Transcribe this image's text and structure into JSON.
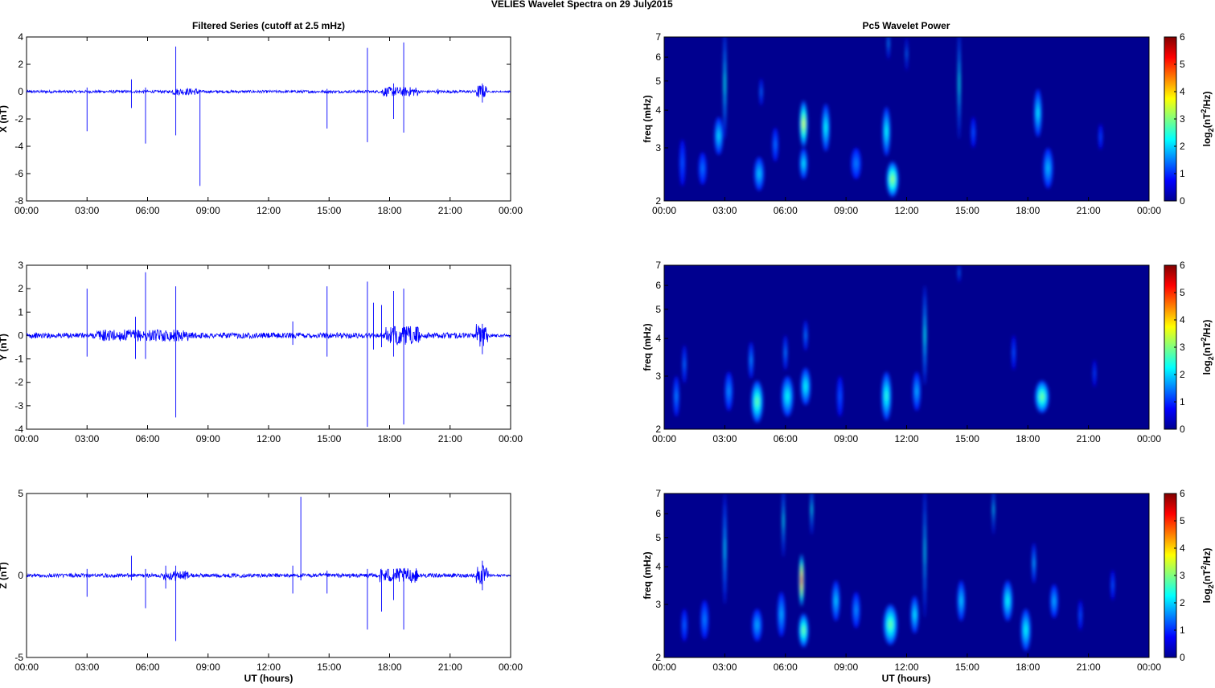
{
  "figure": {
    "title": "VELIES Wavelet Spectra on 29 July",
    "year": "2015",
    "left_title": "Filtered Series (cutoff at 2.5 mHz)",
    "right_title": "Pc5 Wavelet Power",
    "xlabel": "UT (hours)",
    "colorbar_label": "log2(nT^2/Hz)",
    "colors": {
      "trace": "#0000ff",
      "spec_bg": "#00008f"
    }
  },
  "chart_data": [
    {
      "type": "line",
      "name": "X",
      "ylabel": "X (nT)",
      "xlim": [
        0,
        24
      ],
      "ylim": [
        -8,
        4
      ],
      "yticks": [
        "4",
        "2",
        "0",
        "-2",
        "-4",
        "-6",
        "-8"
      ],
      "xticks": [
        "00:00",
        "03:00",
        "06:00",
        "09:00",
        "12:00",
        "15:00",
        "18:00",
        "21:00",
        "00:00"
      ],
      "noise_amp": 0.1,
      "bursts": [
        [
          7.2,
          8.6,
          0.25
        ],
        [
          17.6,
          19.4,
          0.35
        ],
        [
          22.3,
          22.8,
          0.5
        ]
      ],
      "spikes": [
        [
          3.0,
          0.3,
          -2.9
        ],
        [
          5.2,
          0.9,
          -1.2
        ],
        [
          5.9,
          0.3,
          -3.8
        ],
        [
          7.4,
          3.3,
          -3.2
        ],
        [
          8.6,
          0.1,
          -6.9
        ],
        [
          14.9,
          0.2,
          -2.7
        ],
        [
          16.9,
          3.2,
          -3.7
        ],
        [
          18.2,
          0.6,
          -2.0
        ],
        [
          18.7,
          3.6,
          -3.0
        ],
        [
          20.4,
          0.2,
          -0.2
        ],
        [
          22.6,
          0.6,
          -0.8
        ]
      ]
    },
    {
      "type": "line",
      "name": "Y",
      "ylabel": "Y (nT)",
      "xlim": [
        0,
        24
      ],
      "ylim": [
        -4,
        3
      ],
      "yticks": [
        "3",
        "2",
        "1",
        "0",
        "-1",
        "-2",
        "-3",
        "-4"
      ],
      "xticks": [
        "00:00",
        "03:00",
        "06:00",
        "09:00",
        "12:00",
        "15:00",
        "18:00",
        "21:00",
        "00:00"
      ],
      "noise_amp": 0.12,
      "bursts": [
        [
          3.5,
          8.0,
          0.25
        ],
        [
          17.8,
          19.5,
          0.4
        ],
        [
          22.3,
          22.9,
          0.5
        ]
      ],
      "spikes": [
        [
          3.0,
          2.0,
          -0.9
        ],
        [
          5.4,
          0.8,
          -1.0
        ],
        [
          5.9,
          2.7,
          -1.0
        ],
        [
          7.4,
          2.1,
          -3.5
        ],
        [
          13.2,
          0.6,
          -0.4
        ],
        [
          14.9,
          2.1,
          -0.9
        ],
        [
          16.9,
          2.3,
          -3.9
        ],
        [
          17.2,
          1.4,
          -0.6
        ],
        [
          17.6,
          1.3,
          -0.5
        ],
        [
          18.2,
          1.9,
          -0.9
        ],
        [
          18.7,
          2.0,
          -3.8
        ],
        [
          22.6,
          0.5,
          -0.8
        ]
      ]
    },
    {
      "type": "line",
      "name": "Z",
      "ylabel": "Z (nT)",
      "xlim": [
        0,
        24
      ],
      "ylim": [
        -5,
        5
      ],
      "yticks": [
        "5",
        "0",
        "-5"
      ],
      "xticks": [
        "00:00",
        "03:00",
        "06:00",
        "09:00",
        "12:00",
        "15:00",
        "18:00",
        "21:00",
        "00:00"
      ],
      "noise_amp": 0.12,
      "bursts": [
        [
          6.8,
          8.0,
          0.3
        ],
        [
          17.5,
          19.4,
          0.45
        ],
        [
          22.3,
          22.9,
          0.6
        ]
      ],
      "spikes": [
        [
          3.0,
          0.4,
          -1.3
        ],
        [
          5.2,
          1.2,
          -0.3
        ],
        [
          5.9,
          0.4,
          -2.0
        ],
        [
          6.9,
          0.6,
          -0.8
        ],
        [
          7.4,
          0.6,
          -4.0
        ],
        [
          13.2,
          0.6,
          -1.1
        ],
        [
          13.6,
          4.8,
          -0.3
        ],
        [
          14.9,
          0.3,
          -1.1
        ],
        [
          16.9,
          0.4,
          -3.3
        ],
        [
          17.6,
          0.3,
          -2.2
        ],
        [
          18.2,
          0.4,
          -1.5
        ],
        [
          18.7,
          0.4,
          -3.3
        ],
        [
          22.6,
          0.9,
          -0.9
        ]
      ]
    },
    {
      "type": "heatmap",
      "name": "X wavelet power",
      "ylabel": "freq (mHz)",
      "xlim": [
        0,
        24
      ],
      "ylim": [
        2,
        7
      ],
      "yscale": "log",
      "yticks": [
        "2",
        "3",
        "4",
        "5",
        "6",
        "7"
      ],
      "xticks": [
        "00:00",
        "03:00",
        "06:00",
        "09:00",
        "12:00",
        "15:00",
        "18:00",
        "21:00",
        "00:00"
      ],
      "clim": [
        0,
        6
      ],
      "colorbar_ticks": [
        "0",
        "1",
        "2",
        "3",
        "4",
        "5",
        "6"
      ],
      "blobs": [
        [
          0.9,
          2.6,
          0.15,
          0.6,
          0.6
        ],
        [
          1.9,
          2.5,
          0.2,
          0.4,
          0.8
        ],
        [
          2.7,
          3.2,
          0.22,
          0.6,
          1.5
        ],
        [
          3.0,
          5.0,
          0.07,
          3.0,
          1.8
        ],
        [
          4.7,
          2.4,
          0.25,
          0.4,
          1.4
        ],
        [
          4.8,
          4.5,
          0.08,
          0.6,
          0.8
        ],
        [
          5.5,
          3.0,
          0.15,
          0.5,
          0.8
        ],
        [
          6.9,
          3.5,
          0.2,
          0.8,
          3.2
        ],
        [
          6.9,
          2.6,
          0.2,
          0.4,
          1.6
        ],
        [
          8.0,
          3.4,
          0.2,
          0.8,
          1.8
        ],
        [
          9.5,
          2.6,
          0.25,
          0.4,
          0.9
        ],
        [
          11.0,
          3.3,
          0.2,
          0.8,
          1.8
        ],
        [
          11.3,
          2.3,
          0.3,
          0.4,
          2.8
        ],
        [
          11.1,
          6.5,
          0.06,
          1.0,
          1.0
        ],
        [
          12.0,
          6.0,
          0.05,
          1.0,
          0.8
        ],
        [
          14.6,
          5.0,
          0.06,
          3.0,
          1.8
        ],
        [
          15.3,
          3.3,
          0.12,
          0.5,
          0.6
        ],
        [
          18.5,
          3.8,
          0.2,
          0.9,
          1.6
        ],
        [
          19.0,
          2.5,
          0.25,
          0.5,
          1.3
        ],
        [
          21.6,
          3.2,
          0.1,
          0.4,
          0.5
        ]
      ]
    },
    {
      "type": "heatmap",
      "name": "Y wavelet power",
      "ylabel": "freq (mHz)",
      "xlim": [
        0,
        24
      ],
      "ylim": [
        2,
        7
      ],
      "yscale": "log",
      "yticks": [
        "2",
        "3",
        "4",
        "5",
        "6",
        "7"
      ],
      "xticks": [
        "00:00",
        "03:00",
        "06:00",
        "09:00",
        "12:00",
        "15:00",
        "18:00",
        "21:00",
        "00:00"
      ],
      "clim": [
        0,
        6
      ],
      "colorbar_ticks": [
        "0",
        "1",
        "2",
        "3",
        "4",
        "5",
        "6"
      ],
      "blobs": [
        [
          0.6,
          2.5,
          0.15,
          0.5,
          0.9
        ],
        [
          1.0,
          3.2,
          0.1,
          0.6,
          0.8
        ],
        [
          3.2,
          2.6,
          0.2,
          0.5,
          1.0
        ],
        [
          4.6,
          2.4,
          0.3,
          0.5,
          2.4
        ],
        [
          4.3,
          3.3,
          0.12,
          0.6,
          1.0
        ],
        [
          6.1,
          2.5,
          0.3,
          0.5,
          1.8
        ],
        [
          6.0,
          3.5,
          0.1,
          0.6,
          0.9
        ],
        [
          7.0,
          2.7,
          0.25,
          0.5,
          1.8
        ],
        [
          7.0,
          4.0,
          0.1,
          0.6,
          0.9
        ],
        [
          8.7,
          2.5,
          0.15,
          0.5,
          0.6
        ],
        [
          11.0,
          2.5,
          0.25,
          0.6,
          2.0
        ],
        [
          12.5,
          2.6,
          0.2,
          0.5,
          1.2
        ],
        [
          12.9,
          4.0,
          0.08,
          2.0,
          1.8
        ],
        [
          14.6,
          6.5,
          0.05,
          0.6,
          0.8
        ],
        [
          18.7,
          2.5,
          0.35,
          0.4,
          2.5
        ],
        [
          17.3,
          3.5,
          0.1,
          0.6,
          0.6
        ],
        [
          21.3,
          3.0,
          0.08,
          0.4,
          0.5
        ]
      ]
    },
    {
      "type": "heatmap",
      "name": "Z wavelet power",
      "ylabel": "freq (mHz)",
      "xlim": [
        0,
        24
      ],
      "ylim": [
        2,
        7
      ],
      "yscale": "log",
      "yticks": [
        "2",
        "3",
        "4",
        "5",
        "6",
        "7"
      ],
      "xticks": [
        "00:00",
        "03:00",
        "06:00",
        "09:00",
        "12:00",
        "15:00",
        "18:00",
        "21:00",
        "00:00"
      ],
      "clim": [
        0,
        6
      ],
      "colorbar_ticks": [
        "0",
        "1",
        "2",
        "3",
        "4",
        "5",
        "6"
      ],
      "blobs": [
        [
          1.0,
          2.5,
          0.15,
          0.4,
          0.7
        ],
        [
          2.0,
          2.6,
          0.2,
          0.5,
          0.9
        ],
        [
          3.0,
          4.5,
          0.08,
          2.5,
          1.5
        ],
        [
          4.6,
          2.5,
          0.25,
          0.4,
          1.2
        ],
        [
          5.8,
          2.7,
          0.2,
          0.6,
          1.2
        ],
        [
          5.9,
          5.5,
          0.06,
          2.0,
          1.6
        ],
        [
          6.8,
          3.5,
          0.12,
          0.9,
          4.8
        ],
        [
          6.9,
          2.4,
          0.25,
          0.4,
          2.5
        ],
        [
          7.3,
          6.0,
          0.06,
          1.5,
          1.6
        ],
        [
          8.5,
          3.0,
          0.2,
          0.6,
          1.4
        ],
        [
          9.5,
          2.8,
          0.2,
          0.5,
          1.0
        ],
        [
          11.2,
          2.5,
          0.35,
          0.5,
          2.4
        ],
        [
          12.4,
          2.7,
          0.2,
          0.5,
          1.6
        ],
        [
          12.9,
          4.5,
          0.06,
          3.0,
          1.6
        ],
        [
          14.7,
          3.0,
          0.2,
          0.6,
          1.4
        ],
        [
          16.3,
          6.0,
          0.05,
          1.5,
          1.4
        ],
        [
          17.0,
          3.0,
          0.25,
          0.6,
          1.8
        ],
        [
          17.9,
          2.4,
          0.25,
          0.5,
          1.8
        ],
        [
          18.3,
          4.0,
          0.1,
          0.8,
          1.2
        ],
        [
          19.3,
          3.0,
          0.2,
          0.5,
          1.2
        ],
        [
          20.6,
          2.7,
          0.1,
          0.4,
          0.6
        ],
        [
          22.2,
          3.4,
          0.1,
          0.5,
          0.6
        ]
      ]
    }
  ]
}
